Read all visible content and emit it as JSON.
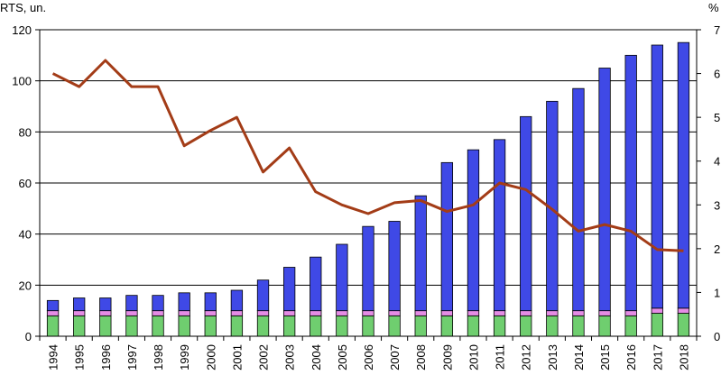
{
  "chart_data": {
    "type": "bar",
    "stacked": true,
    "left_axis_unit": "RTS, un.",
    "right_axis_unit": "%",
    "categories": [
      "1994",
      "1995",
      "1996",
      "1997",
      "1998",
      "1999",
      "2000",
      "2001",
      "2002",
      "2003",
      "2004",
      "2005",
      "2006",
      "2007",
      "2008",
      "2009",
      "2010",
      "2011",
      "2012",
      "2013",
      "2014",
      "2015",
      "2016",
      "2017",
      "2018"
    ],
    "ylim_left": [
      0,
      120
    ],
    "yticks_left": [
      0,
      20,
      40,
      60,
      80,
      100,
      120
    ],
    "ylim_right": [
      0,
      7
    ],
    "yticks_right": [
      0,
      1,
      2,
      3,
      4,
      5,
      6,
      7
    ],
    "grid": true,
    "series": [
      {
        "axis": "left",
        "kind": "bar",
        "color": "#6fce6f",
        "values": [
          8,
          8,
          8,
          8,
          8,
          8,
          8,
          8,
          8,
          8,
          8,
          8,
          8,
          8,
          8,
          8,
          8,
          8,
          8,
          8,
          8,
          8,
          8,
          9,
          9
        ]
      },
      {
        "axis": "left",
        "kind": "bar",
        "color": "#e58ce5",
        "values": [
          2,
          2,
          2,
          2,
          2,
          2,
          2,
          2,
          2,
          2,
          2,
          2,
          2,
          2,
          2,
          2,
          2,
          2,
          2,
          2,
          2,
          2,
          2,
          2,
          2
        ]
      },
      {
        "axis": "left",
        "kind": "bar",
        "color": "#3f49e6",
        "values": [
          4,
          5,
          5,
          6,
          6,
          7,
          7,
          8,
          12,
          17,
          21,
          26,
          33,
          35,
          45,
          58,
          63,
          67,
          76,
          82,
          87,
          95,
          100,
          103,
          104
        ]
      },
      {
        "axis": "right",
        "kind": "line",
        "color": "#a33c17",
        "values": [
          6.0,
          5.7,
          6.3,
          5.7,
          5.7,
          4.35,
          4.7,
          5.0,
          3.75,
          4.3,
          3.3,
          3.0,
          2.8,
          3.05,
          3.1,
          2.85,
          3.0,
          3.5,
          3.35,
          2.9,
          2.4,
          2.55,
          2.4,
          1.98,
          1.95
        ]
      }
    ]
  }
}
